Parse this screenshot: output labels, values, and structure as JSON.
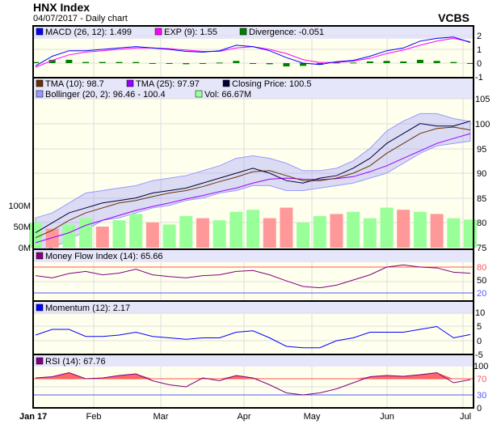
{
  "header": {
    "title": "HNX Index",
    "subtitle": "04/07/2017 - Daily chart",
    "brand": "VCBS"
  },
  "legends": {
    "macd": "MACD (26, 12): 1.499",
    "exp": "EXP (9): 1.55",
    "divergence": "Divergence: -0.051",
    "tma10": "TMA (10): 98.7",
    "tma25": "TMA (25): 97.97",
    "close": "Closing Price: 100.5",
    "bollinger": "Bollinger (20, 2): 96.46 - 100.4",
    "vol": "Vol: 66.67M",
    "mfi": "Money Flow Index (14): 65.66",
    "momentum": "Momentum (12): 2.17",
    "rsi": "RSI (14): 67.76"
  },
  "colors": {
    "macd": "#0000ff",
    "exp": "#ff00ff",
    "divergence": "#008000",
    "tma10": "#663300",
    "tma25": "#9900ff",
    "close": "#000033",
    "bollinger": "#9999ff",
    "vol_up": "#99ff99",
    "vol_down": "#ff9999",
    "mfi": "#800080",
    "momentum": "#0000ff",
    "rsi": "#800080",
    "panel_bg": "#ffffee",
    "header_bg": "#e6e6fa"
  },
  "chart_data": {
    "type": "line",
    "x_labels": [
      "Jan 17",
      "Feb",
      "Mar",
      "Apr",
      "May",
      "Jun",
      "Jul"
    ],
    "panels": {
      "macd": {
        "ticks": [
          "2",
          "1",
          "0",
          "-1"
        ],
        "ylim": [
          -1,
          2.2
        ],
        "macd": [
          -0.2,
          0.5,
          0.9,
          0.9,
          1.0,
          1.1,
          1.2,
          1.1,
          1.0,
          0.85,
          0.8,
          0.9,
          1.3,
          1.2,
          0.9,
          0.4,
          0.0,
          -0.1,
          0.1,
          0.2,
          0.5,
          0.9,
          1.1,
          1.6,
          1.8,
          1.9,
          1.5
        ],
        "exp": [
          -0.3,
          0.2,
          0.6,
          0.8,
          0.9,
          1.0,
          1.1,
          1.1,
          1.05,
          0.95,
          0.85,
          0.85,
          1.1,
          1.2,
          1.0,
          0.7,
          0.25,
          0.05,
          0.05,
          0.15,
          0.35,
          0.7,
          0.95,
          1.3,
          1.6,
          1.8,
          1.55
        ]
      },
      "price": {
        "ticks": [
          "105",
          "100",
          "95",
          "90",
          "85",
          "80",
          "75"
        ],
        "vol_ticks": [
          "100M",
          "50M",
          "0M"
        ],
        "ylim": [
          75,
          105
        ],
        "close": [
          78,
          80,
          82,
          83,
          84,
          84.5,
          85,
          86,
          86.5,
          87,
          88,
          89,
          90,
          91,
          90,
          88.5,
          88,
          89,
          89.5,
          91,
          93,
          96,
          98,
          100,
          99.5,
          99.5,
          100.5
        ],
        "tma10": [
          77,
          78.5,
          80.5,
          82,
          83,
          84,
          84.5,
          85.3,
          86,
          86.5,
          87.3,
          88.3,
          89.2,
          90.3,
          90.5,
          89.5,
          88.5,
          88.5,
          89,
          90,
          91.5,
          94,
          96,
          98,
          99,
          99.3,
          98.7
        ],
        "tma25": [
          76,
          77,
          78,
          79.5,
          80.5,
          81.5,
          82.5,
          83.3,
          84,
          84.8,
          85.5,
          86.3,
          87,
          88,
          88.8,
          89,
          88.8,
          88.7,
          88.9,
          89.3,
          90.3,
          91.5,
          93,
          94.5,
          96,
          97,
          97.97
        ],
        "boll_upper": [
          81,
          82,
          84,
          86,
          86.5,
          87,
          87.5,
          88.5,
          89,
          89.5,
          90.5,
          91.5,
          93,
          93.5,
          93,
          92,
          90.5,
          90.5,
          91,
          92.5,
          95,
          98.5,
          100.5,
          102,
          102,
          101,
          100.4
        ],
        "boll_lower": [
          74,
          75,
          76.5,
          78.5,
          80.5,
          81,
          82,
          83,
          83.5,
          84.5,
          85,
          86,
          86.5,
          87.5,
          87.5,
          86.5,
          86.5,
          87,
          87.5,
          88,
          89,
          90,
          92,
          94,
          95.5,
          96,
          96.46
        ],
        "volume_m": [
          60,
          45,
          55,
          70,
          50,
          65,
          80,
          60,
          55,
          75,
          70,
          65,
          85,
          90,
          70,
          95,
          60,
          75,
          80,
          85,
          70,
          95,
          90,
          85,
          80,
          70,
          66.67
        ],
        "volume_up": [
          true,
          false,
          true,
          true,
          false,
          true,
          true,
          false,
          true,
          true,
          false,
          true,
          true,
          true,
          false,
          false,
          true,
          true,
          false,
          true,
          true,
          true,
          false,
          true,
          false,
          true,
          true
        ]
      },
      "mfi": {
        "ticks": [
          "80",
          "50",
          "20"
        ],
        "levels": [
          80,
          20
        ],
        "ylim": [
          0,
          100
        ],
        "values": [
          60,
          55,
          65,
          70,
          62,
          66,
          75,
          62,
          58,
          55,
          60,
          62,
          70,
          72,
          62,
          48,
          35,
          32,
          38,
          50,
          62,
          80,
          85,
          80,
          78,
          68,
          65.66
        ]
      },
      "momentum": {
        "ticks": [
          "10",
          "5",
          "0",
          "-5"
        ],
        "ylim": [
          -5,
          12
        ],
        "values": [
          2,
          4,
          4,
          1.5,
          1.5,
          2,
          3,
          1.5,
          1,
          0.5,
          1,
          1,
          3,
          3.5,
          1,
          -2,
          -2.5,
          -2.5,
          0,
          1,
          3,
          3,
          3,
          4,
          5,
          1,
          2.17
        ]
      },
      "rsi": {
        "ticks": [
          "100",
          "70",
          "30",
          "0"
        ],
        "levels": [
          70,
          30
        ],
        "ylim": [
          0,
          100
        ],
        "values": [
          72,
          75,
          85,
          70,
          72,
          78,
          82,
          65,
          55,
          50,
          72,
          65,
          78,
          72,
          55,
          35,
          30,
          35,
          45,
          60,
          75,
          78,
          76,
          80,
          85,
          60,
          67.76
        ]
      }
    }
  }
}
